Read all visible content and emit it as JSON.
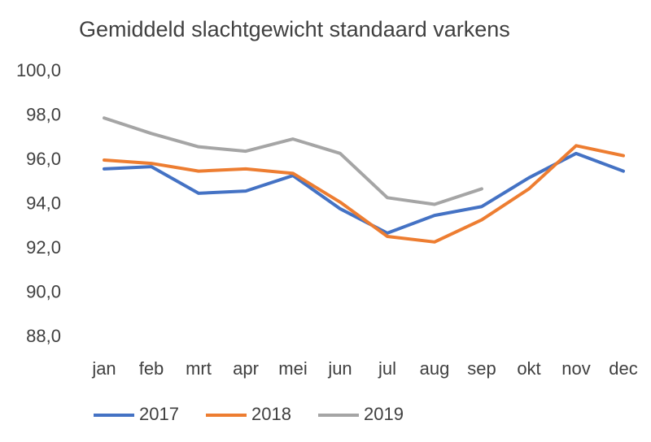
{
  "chart_data": {
    "type": "line",
    "title": "Gemiddeld slachtgewicht standaard varkens",
    "categories": [
      "jan",
      "feb",
      "mrt",
      "apr",
      "mei",
      "jun",
      "jul",
      "aug",
      "sep",
      "okt",
      "nov",
      "dec"
    ],
    "series": [
      {
        "name": "2017",
        "color": "#4472c4",
        "values": [
          95.6,
          95.7,
          94.5,
          94.6,
          95.3,
          93.8,
          92.7,
          93.5,
          93.9,
          95.2,
          96.3,
          95.5
        ]
      },
      {
        "name": "2018",
        "color": "#ed7d31",
        "values": [
          96.0,
          95.85,
          95.5,
          95.6,
          95.4,
          94.1,
          92.55,
          92.3,
          93.3,
          94.7,
          96.65,
          96.2
        ]
      },
      {
        "name": "2019",
        "color": "#a5a5a5",
        "values": [
          97.9,
          97.2,
          96.6,
          96.4,
          96.95,
          96.3,
          94.3,
          94.0,
          94.7,
          null,
          null,
          null
        ]
      }
    ],
    "ylim": [
      88,
      100
    ],
    "yticks": [
      {
        "value": 88,
        "label": "88,0"
      },
      {
        "value": 90,
        "label": "90,0"
      },
      {
        "value": 92,
        "label": "92,0"
      },
      {
        "value": 94,
        "label": "94,0"
      },
      {
        "value": 96,
        "label": "96,0"
      },
      {
        "value": 98,
        "label": "98,0"
      },
      {
        "value": 100,
        "label": "100,0"
      }
    ],
    "grid": false,
    "legend": "bottom"
  }
}
